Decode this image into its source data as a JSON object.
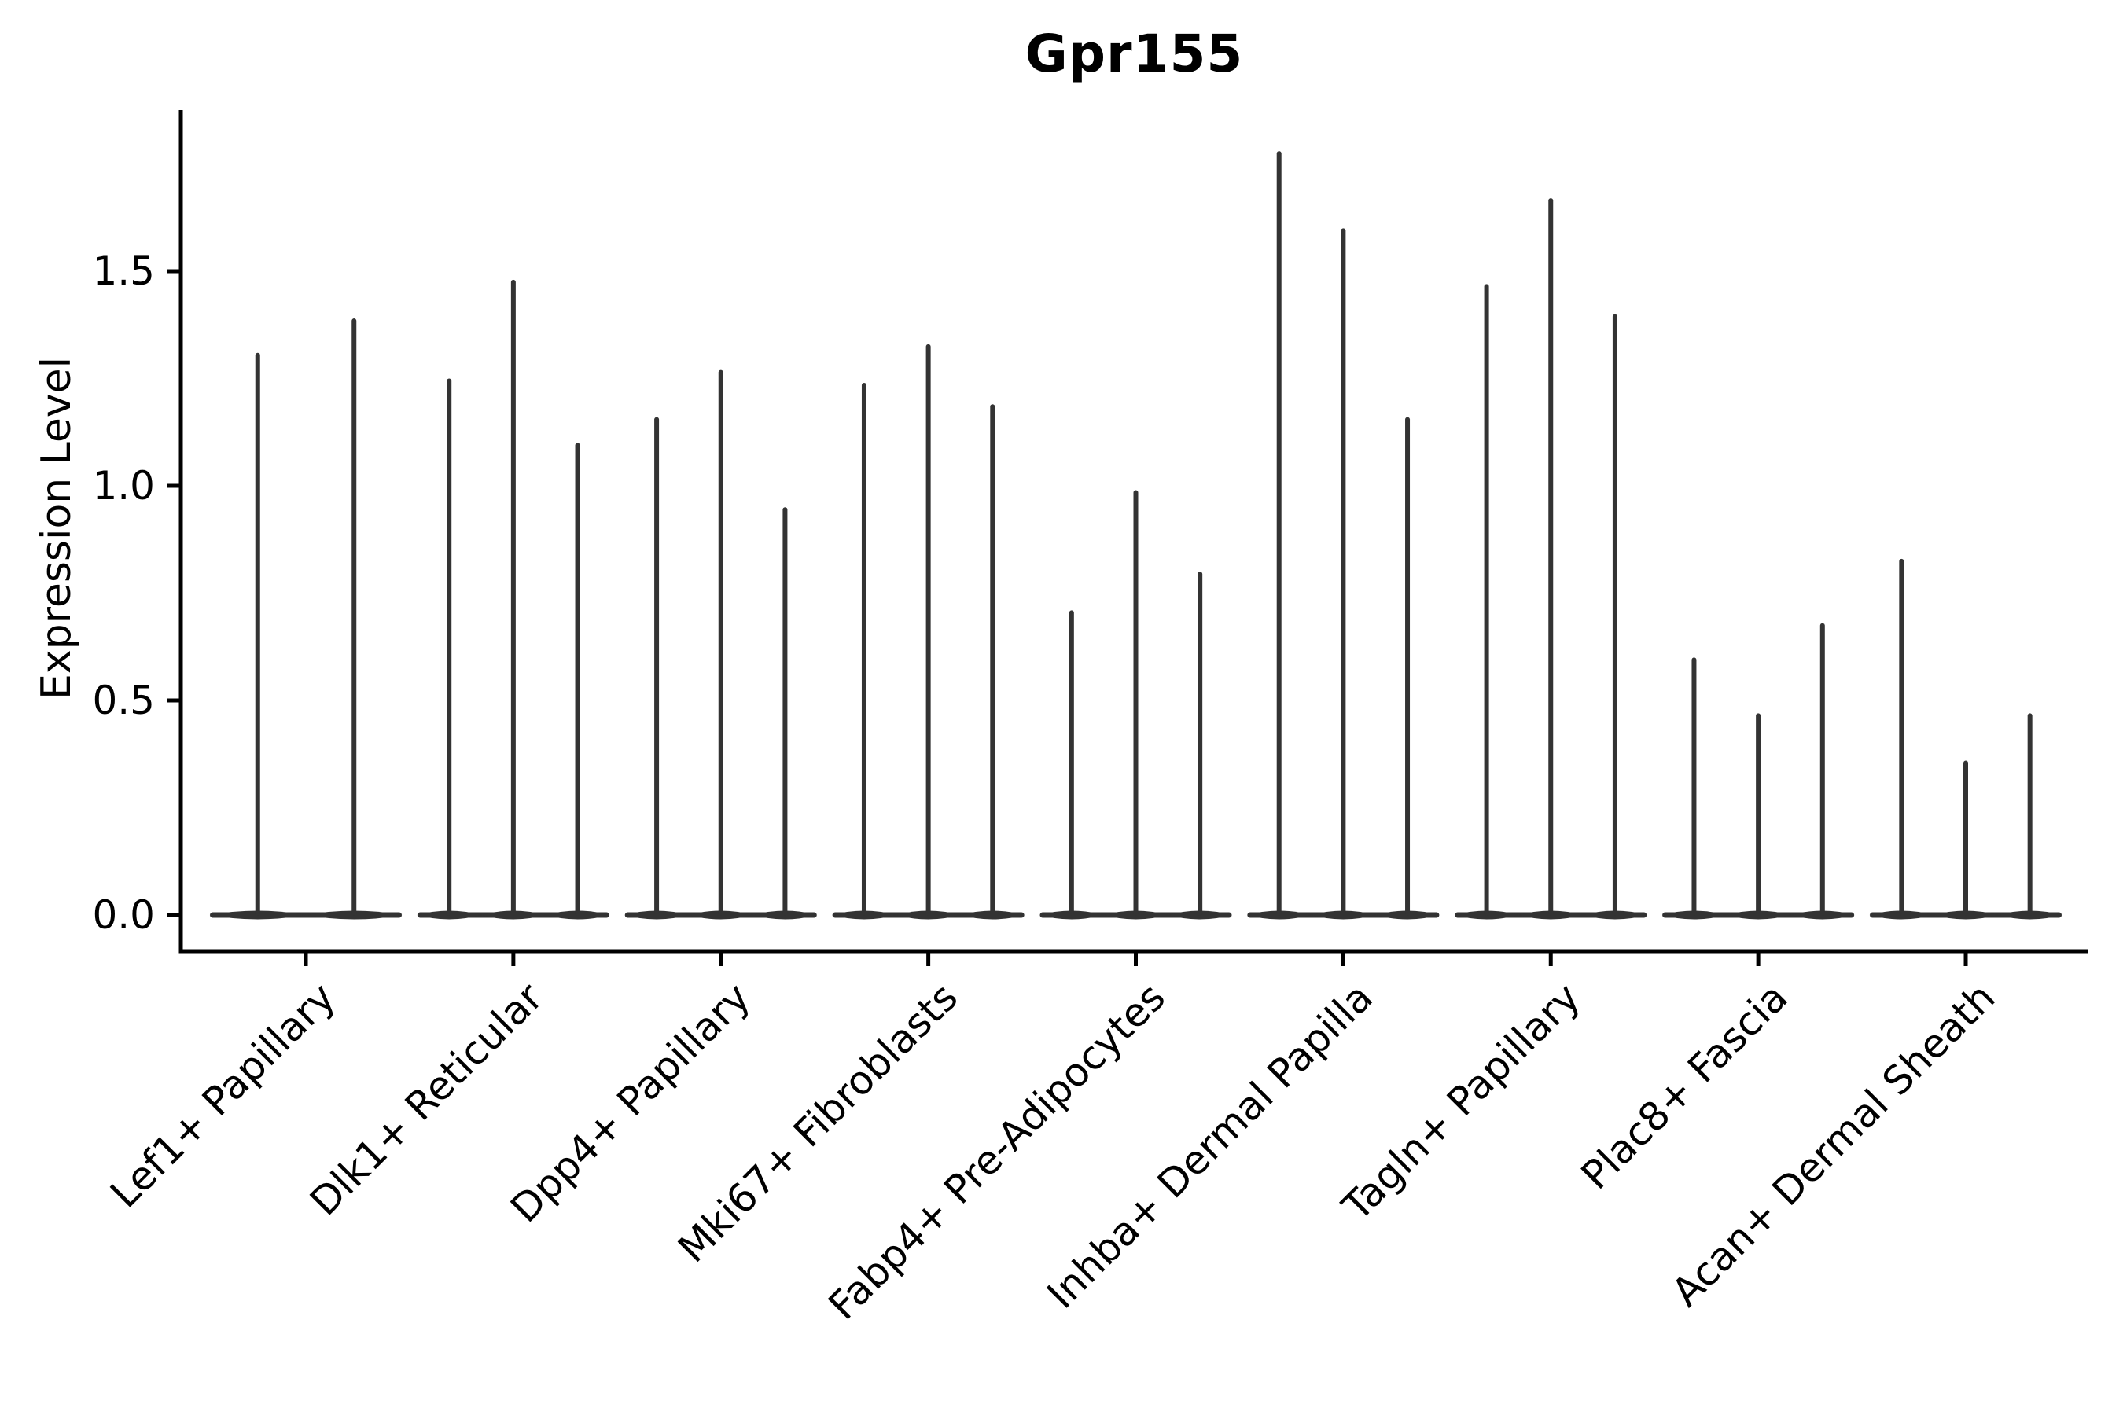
{
  "chart_data": {
    "type": "violin",
    "title": "Gpr155",
    "ylabel": "Expression Level",
    "xlabel": "",
    "ytick_labels": [
      "0.0",
      "0.5",
      "1.0",
      "1.5"
    ],
    "yticks": [
      0.0,
      0.5,
      1.0,
      1.5
    ],
    "ylim": [
      -0.085,
      1.88
    ],
    "grid": false,
    "legend_position": "none",
    "violin_color": "#333333",
    "axis_color": "#000000",
    "text_color": "#000000",
    "background_color": "#ffffff",
    "categories": [
      "Lef1+ Papillary",
      "Dlk1+ Reticular",
      "Dpp4+ Papillary",
      "Mki67+ Fibroblasts",
      "Fabp4+ Pre-Adipocytes",
      "Inhba+ Dermal Papilla",
      "Tagln+ Papillary",
      "Plac8+ Fascia",
      "Acan+ Dermal Sheath"
    ],
    "series": [
      {
        "category": "Lef1+ Papillary",
        "violin_max_expression": [
          1.31,
          1.39
        ]
      },
      {
        "category": "Dlk1+ Reticular",
        "violin_max_expression": [
          1.25,
          1.48,
          1.1
        ]
      },
      {
        "category": "Dpp4+ Papillary",
        "violin_max_expression": [
          1.16,
          1.27,
          0.95
        ]
      },
      {
        "category": "Mki67+ Fibroblasts",
        "violin_max_expression": [
          1.24,
          1.33,
          1.19
        ]
      },
      {
        "category": "Fabp4+ Pre-Adipocytes",
        "violin_max_expression": [
          0.71,
          0.99,
          0.8
        ]
      },
      {
        "category": "Inhba+ Dermal Papilla",
        "violin_max_expression": [
          1.78,
          1.6,
          1.16
        ]
      },
      {
        "category": "Tagln+ Papillary",
        "violin_max_expression": [
          1.47,
          1.67,
          1.4
        ]
      },
      {
        "category": "Plac8+ Fascia",
        "violin_max_expression": [
          0.6,
          0.47,
          0.68
        ]
      },
      {
        "category": "Acan+ Dermal Sheath",
        "violin_max_expression": [
          0.83,
          0.36,
          0.47
        ]
      }
    ]
  }
}
